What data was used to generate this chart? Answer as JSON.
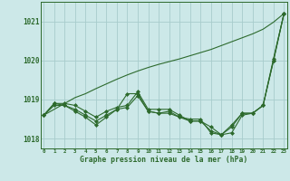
{
  "title": "Graphe pression niveau de la mer (hPa)",
  "x": [
    0,
    1,
    2,
    3,
    4,
    5,
    6,
    7,
    8,
    9,
    10,
    11,
    12,
    13,
    14,
    15,
    16,
    17,
    18,
    19,
    20,
    21,
    22,
    23
  ],
  "line_smooth": [
    1018.6,
    1018.75,
    1018.9,
    1019.05,
    1019.15,
    1019.28,
    1019.4,
    1019.52,
    1019.63,
    1019.73,
    1019.82,
    1019.9,
    1019.97,
    1020.04,
    1020.12,
    1020.2,
    1020.28,
    1020.38,
    1020.48,
    1020.58,
    1020.68,
    1020.8,
    1020.98,
    1021.2
  ],
  "line_main": [
    1018.6,
    1018.9,
    1018.9,
    1018.85,
    1018.7,
    1018.55,
    1018.7,
    1018.8,
    1018.85,
    1019.2,
    1018.75,
    1018.75,
    1018.75,
    1018.6,
    1018.45,
    1018.45,
    1018.3,
    1018.1,
    1018.3,
    1018.65,
    1018.65,
    1018.85,
    1020.05,
    1021.2
  ],
  "line_secondary": [
    1018.6,
    1018.9,
    1018.85,
    1018.7,
    1018.55,
    1018.35,
    1018.55,
    1018.75,
    1019.15,
    1019.15,
    1018.7,
    1018.65,
    1018.65,
    1018.55,
    1018.45,
    1018.45,
    1018.2,
    1018.1,
    1018.15,
    1018.6,
    1018.65,
    1018.85,
    1020.0,
    1021.2
  ],
  "line_third": [
    1018.6,
    1018.85,
    1018.85,
    1018.75,
    1018.6,
    1018.45,
    1018.6,
    1018.75,
    1018.8,
    1019.1,
    1018.7,
    1018.65,
    1018.7,
    1018.55,
    1018.5,
    1018.5,
    1018.15,
    1018.1,
    1018.35,
    1018.65,
    1018.65,
    1018.85,
    1020.0,
    1021.2
  ],
  "line_color": "#2d6a2d",
  "bg_color": "#cce8e8",
  "grid_color": "#a8cccc",
  "ylim": [
    1017.75,
    1021.5
  ],
  "yticks": [
    1018,
    1019,
    1020,
    1021
  ],
  "xticks": [
    0,
    1,
    2,
    3,
    4,
    5,
    6,
    7,
    8,
    9,
    10,
    11,
    12,
    13,
    14,
    15,
    16,
    17,
    18,
    19,
    20,
    21,
    22,
    23
  ]
}
